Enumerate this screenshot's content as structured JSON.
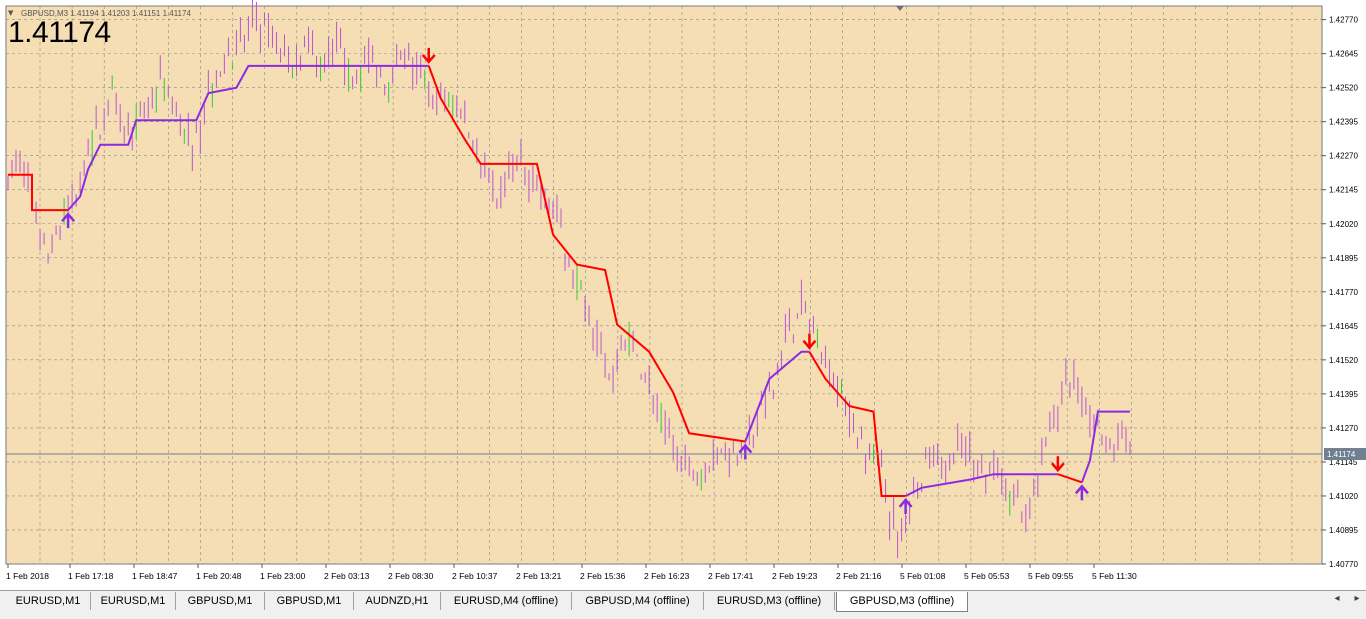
{
  "symbol_info": "GBPUSD,M3  1.41194 1.41203 1.41151 1.41174",
  "current_price_big": "1.41174",
  "current_price_tag": "1.41174",
  "colors": {
    "background": "#f5deb3",
    "grid": "#8a8a8a",
    "bar_up": "#32cd32",
    "bar_down": "#ba55d3",
    "line_down": "#ff0000",
    "line_up": "#8a2be2",
    "arrow_down": "#ff0000",
    "arrow_up": "#8a2be2"
  },
  "tabs": [
    {
      "label": "EURUSD,M1",
      "active": false
    },
    {
      "label": "EURUSD,M1",
      "active": false
    },
    {
      "label": "GBPUSD,M1",
      "active": false
    },
    {
      "label": "GBPUSD,M1",
      "active": false
    },
    {
      "label": "AUDNZD,H1",
      "active": false
    },
    {
      "label": "EURUSD,M4 (offline)",
      "active": false
    },
    {
      "label": "GBPUSD,M4 (offline)",
      "active": false
    },
    {
      "label": "EURUSD,M3 (offline)",
      "active": false
    },
    {
      "label": "GBPUSD,M3 (offline)",
      "active": true
    }
  ],
  "chart_data": {
    "type": "line",
    "instrument": "GBPUSD",
    "timeframe": "M3",
    "grid": true,
    "ylim": [
      1.4077,
      1.4282
    ],
    "y_ticks": [
      "1.42770",
      "1.42645",
      "1.42520",
      "1.42395",
      "1.42270",
      "1.42145",
      "1.42020",
      "1.41895",
      "1.41770",
      "1.41645",
      "1.41520",
      "1.41395",
      "1.41270",
      "1.41145",
      "1.41020",
      "1.40895",
      "1.40770"
    ],
    "x_ticks": [
      "1 Feb 2018",
      "1 Feb 17:18",
      "1 Feb 18:47",
      "1 Feb 20:48",
      "1 Feb 23:00",
      "2 Feb 03:13",
      "2 Feb 08:30",
      "2 Feb 10:37",
      "2 Feb 13:21",
      "2 Feb 15:36",
      "2 Feb 16:23",
      "2 Feb 17:41",
      "2 Feb 19:23",
      "2 Feb 21:16",
      "5 Feb 01:08",
      "5 Feb 05:53",
      "5 Feb 09:55",
      "5 Feb 11:30"
    ],
    "x_index_max": 280,
    "price_keypoints": [
      [
        0,
        1.422
      ],
      [
        4,
        1.4225
      ],
      [
        8,
        1.42
      ],
      [
        10,
        1.4188
      ],
      [
        14,
        1.4205
      ],
      [
        18,
        1.4215
      ],
      [
        22,
        1.4235
      ],
      [
        26,
        1.425
      ],
      [
        30,
        1.4235
      ],
      [
        34,
        1.424
      ],
      [
        38,
        1.4255
      ],
      [
        42,
        1.424
      ],
      [
        46,
        1.423
      ],
      [
        50,
        1.425
      ],
      [
        54,
        1.4262
      ],
      [
        58,
        1.4268
      ],
      [
        62,
        1.4275
      ],
      [
        66,
        1.427
      ],
      [
        70,
        1.4262
      ],
      [
        74,
        1.4268
      ],
      [
        78,
        1.4262
      ],
      [
        82,
        1.427
      ],
      [
        86,
        1.4258
      ],
      [
        90,
        1.4262
      ],
      [
        94,
        1.4255
      ],
      [
        98,
        1.4265
      ],
      [
        102,
        1.4258
      ],
      [
        106,
        1.4245
      ],
      [
        110,
        1.425
      ],
      [
        114,
        1.424
      ],
      [
        118,
        1.4225
      ],
      [
        122,
        1.421
      ],
      [
        126,
        1.4225
      ],
      [
        130,
        1.422
      ],
      [
        134,
        1.4215
      ],
      [
        138,
        1.42
      ],
      [
        142,
        1.418
      ],
      [
        146,
        1.4165
      ],
      [
        150,
        1.4145
      ],
      [
        154,
        1.416
      ],
      [
        158,
        1.415
      ],
      [
        162,
        1.4135
      ],
      [
        166,
        1.412
      ],
      [
        170,
        1.411
      ],
      [
        174,
        1.4115
      ],
      [
        178,
        1.412
      ],
      [
        182,
        1.4118
      ],
      [
        186,
        1.4125
      ],
      [
        190,
        1.414
      ],
      [
        194,
        1.416
      ],
      [
        198,
        1.417
      ],
      [
        202,
        1.416
      ],
      [
        206,
        1.4145
      ],
      [
        210,
        1.413
      ],
      [
        214,
        1.412
      ],
      [
        218,
        1.411
      ],
      [
        222,
        1.4085
      ],
      [
        226,
        1.41
      ],
      [
        230,
        1.4115
      ],
      [
        234,
        1.411
      ],
      [
        238,
        1.412
      ],
      [
        242,
        1.4115
      ],
      [
        246,
        1.411
      ],
      [
        250,
        1.4105
      ],
      [
        254,
        1.4095
      ],
      [
        258,
        1.4115
      ],
      [
        262,
        1.4135
      ],
      [
        266,
        1.4148
      ],
      [
        270,
        1.413
      ],
      [
        274,
        1.4122
      ],
      [
        278,
        1.412
      ],
      [
        280,
        1.4117
      ]
    ],
    "signal_line_segments": [
      {
        "trend": "down",
        "points": [
          [
            0,
            1.422
          ],
          [
            6,
            1.422
          ],
          [
            6,
            1.4207
          ],
          [
            15,
            1.4207
          ]
        ]
      },
      {
        "trend": "up",
        "points": [
          [
            15,
            1.4207
          ],
          [
            18,
            1.4212
          ],
          [
            20,
            1.4222
          ],
          [
            23,
            1.4231
          ],
          [
            30,
            1.4231
          ],
          [
            32,
            1.424
          ],
          [
            47,
            1.424
          ],
          [
            50,
            1.425
          ],
          [
            57,
            1.4252
          ],
          [
            60,
            1.426
          ],
          [
            105,
            1.426
          ]
        ]
      },
      {
        "trend": "down",
        "points": [
          [
            105,
            1.426
          ],
          [
            108,
            1.4248
          ],
          [
            114,
            1.4233
          ],
          [
            118,
            1.4224
          ],
          [
            132,
            1.4224
          ],
          [
            136,
            1.4198
          ],
          [
            142,
            1.4187
          ],
          [
            149,
            1.4185
          ],
          [
            152,
            1.4165
          ],
          [
            160,
            1.4155
          ],
          [
            166,
            1.414
          ],
          [
            170,
            1.4125
          ],
          [
            184,
            1.4122
          ]
        ]
      },
      {
        "trend": "up",
        "points": [
          [
            184,
            1.4122
          ],
          [
            190,
            1.4145
          ],
          [
            198,
            1.4155
          ],
          [
            200,
            1.4155
          ]
        ]
      },
      {
        "trend": "down",
        "points": [
          [
            200,
            1.4155
          ],
          [
            204,
            1.4145
          ],
          [
            210,
            1.4135
          ],
          [
            216,
            1.4133
          ],
          [
            218,
            1.4102
          ],
          [
            224,
            1.4102
          ]
        ]
      },
      {
        "trend": "up",
        "points": [
          [
            224,
            1.4102
          ],
          [
            228,
            1.4105
          ],
          [
            240,
            1.4108
          ],
          [
            246,
            1.411
          ],
          [
            262,
            1.411
          ]
        ]
      },
      {
        "trend": "down",
        "points": [
          [
            262,
            1.411
          ],
          [
            268,
            1.4107
          ]
        ]
      },
      {
        "trend": "up",
        "points": [
          [
            268,
            1.4107
          ],
          [
            270,
            1.4115
          ],
          [
            272,
            1.4133
          ],
          [
            280,
            1.4133
          ]
        ]
      }
    ],
    "signals": [
      {
        "type": "buy",
        "x": 15,
        "y": 1.4207
      },
      {
        "type": "sell",
        "x": 105,
        "y": 1.426
      },
      {
        "type": "buy",
        "x": 184,
        "y": 1.4122
      },
      {
        "type": "sell",
        "x": 200,
        "y": 1.4155
      },
      {
        "type": "buy",
        "x": 224,
        "y": 1.4102
      },
      {
        "type": "sell",
        "x": 262,
        "y": 1.411
      },
      {
        "type": "buy",
        "x": 268,
        "y": 1.4107
      }
    ],
    "current_price": 1.41174
  }
}
